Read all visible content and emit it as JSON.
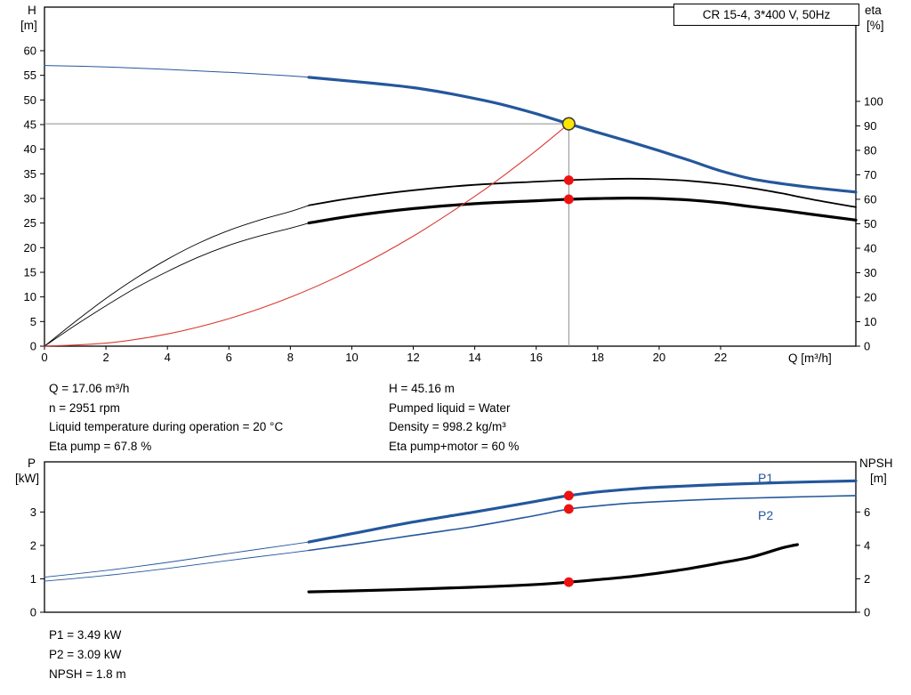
{
  "palette": {
    "curve_blue": "#24579c",
    "curve_red": "#d93a30",
    "black": "#000000",
    "dot_red": "#ee1111",
    "duty_yellow": "#ffe600",
    "duty_ring": "#3c3c3c",
    "crosshair": "#8c8c8c"
  },
  "info_top": {
    "left": [
      "Q = 17.06 m³/h",
      "n = 2951 rpm",
      "Liquid temperature during operation = 20 °C",
      "Eta pump = 67.8 %"
    ],
    "right": [
      "H = 45.16 m",
      "Pumped liquid = Water",
      "Density = 998.2 kg/m³",
      "Eta pump+motor = 60 %"
    ]
  },
  "info_bottom": [
    "P1 = 3.49 kW",
    "P2 = 3.09 kW",
    "NPSH = 1.8 m"
  ],
  "chart_data": [
    {
      "id": "hq_eta",
      "type": "line",
      "title": "CR 15-4, 3*400 V, 50Hz",
      "x_axis": {
        "label": "Q [m³/h]",
        "min": 0,
        "max": 26.4,
        "ticks": [
          0,
          2,
          4,
          6,
          8,
          10,
          12,
          14,
          16,
          18,
          20,
          22
        ]
      },
      "y_left": {
        "label_lines": [
          "H",
          "[m]"
        ],
        "min": 0,
        "max": 68.85,
        "ticks": [
          0,
          5,
          10,
          15,
          20,
          25,
          30,
          35,
          40,
          45,
          50,
          55,
          60
        ]
      },
      "y_right": {
        "label_lines": [
          "eta",
          "[%]"
        ],
        "min": 0,
        "max": 138.5,
        "ticks": [
          0,
          10,
          20,
          30,
          40,
          50,
          60,
          70,
          80,
          90,
          100
        ]
      },
      "crosshair": {
        "q": 17.06,
        "v": 45.16
      },
      "duty_point": {
        "q": 17.06,
        "v": 45.16
      },
      "markers": [
        {
          "axis": "right",
          "q": 17.06,
          "v": 67.8
        },
        {
          "axis": "right",
          "q": 17.06,
          "v": 60
        }
      ],
      "series": [
        {
          "name": "H-Q",
          "axis": "left",
          "color": "curve_blue",
          "segments": [
            {
              "width": 1,
              "points": [
                [
                  0,
                  57
                ],
                [
                  2,
                  56.7
                ],
                [
                  4,
                  56.2
                ],
                [
                  6,
                  55.6
                ],
                [
                  8,
                  54.9
                ],
                [
                  8.6,
                  54.6
                ]
              ]
            },
            {
              "width": 3.2,
              "points": [
                [
                  8.6,
                  54.6
                ],
                [
                  10,
                  53.8
                ],
                [
                  11,
                  53.2
                ],
                [
                  12,
                  52.5
                ],
                [
                  13,
                  51.5
                ],
                [
                  14,
                  50.3
                ],
                [
                  15,
                  48.9
                ],
                [
                  16,
                  47.2
                ],
                [
                  17.06,
                  45.16
                ],
                [
                  18,
                  43.4
                ],
                [
                  19,
                  41.6
                ],
                [
                  20,
                  39.7
                ],
                [
                  21,
                  37.7
                ],
                [
                  22,
                  35.6
                ],
                [
                  23,
                  34
                ],
                [
                  24,
                  33
                ],
                [
                  25,
                  32.2
                ],
                [
                  26.4,
                  31.3
                ]
              ]
            }
          ]
        },
        {
          "name": "eta-pump",
          "axis": "right",
          "color": "black",
          "segments": [
            {
              "width": 0.9,
              "points": [
                [
                  0,
                  0
                ],
                [
                  1,
                  10
                ],
                [
                  2,
                  19.5
                ],
                [
                  3,
                  28
                ],
                [
                  4,
                  35.5
                ],
                [
                  5,
                  42
                ],
                [
                  6,
                  47.3
                ],
                [
                  7,
                  51.5
                ],
                [
                  8,
                  55
                ],
                [
                  8.6,
                  57.5
                ]
              ]
            },
            {
              "width": 1.8,
              "points": [
                [
                  8.6,
                  57.5
                ],
                [
                  10,
                  60.5
                ],
                [
                  12,
                  63.7
                ],
                [
                  14,
                  65.9
                ],
                [
                  16,
                  67.2
                ],
                [
                  17.06,
                  67.8
                ],
                [
                  18,
                  68.2
                ],
                [
                  19,
                  68.4
                ],
                [
                  20,
                  68.2
                ],
                [
                  21,
                  67.5
                ],
                [
                  22,
                  66.3
                ],
                [
                  23,
                  64.6
                ],
                [
                  24,
                  62.4
                ],
                [
                  25,
                  59.9
                ],
                [
                  26.4,
                  56.8
                ]
              ]
            }
          ]
        },
        {
          "name": "eta-pump-motor",
          "axis": "right",
          "color": "black",
          "segments": [
            {
              "width": 0.9,
              "points": [
                [
                  0,
                  0
                ],
                [
                  1,
                  8.5
                ],
                [
                  2,
                  16.5
                ],
                [
                  3,
                  24
                ],
                [
                  4,
                  30.5
                ],
                [
                  5,
                  36.3
                ],
                [
                  6,
                  41.2
                ],
                [
                  7,
                  45
                ],
                [
                  8,
                  48.2
                ],
                [
                  8.6,
                  50.3
                ]
              ]
            },
            {
              "width": 3.2,
              "points": [
                [
                  8.6,
                  50.3
                ],
                [
                  10,
                  53.2
                ],
                [
                  12,
                  56.2
                ],
                [
                  14,
                  58.2
                ],
                [
                  16,
                  59.4
                ],
                [
                  17.06,
                  60
                ],
                [
                  18,
                  60.3
                ],
                [
                  19,
                  60.5
                ],
                [
                  20,
                  60.3
                ],
                [
                  21,
                  59.7
                ],
                [
                  22,
                  58.6
                ],
                [
                  23,
                  57
                ],
                [
                  24,
                  55.5
                ],
                [
                  25,
                  53.8
                ],
                [
                  26.4,
                  51.5
                ]
              ]
            }
          ]
        },
        {
          "name": "affinity-parabola",
          "axis": "left",
          "color": "curve_red",
          "segments": [
            {
              "width": 1.1,
              "points": [
                [
                  0,
                  0
                ],
                [
                  2,
                  0.62
                ],
                [
                  4,
                  2.48
                ],
                [
                  6,
                  5.59
                ],
                [
                  8,
                  9.93
                ],
                [
                  10,
                  15.52
                ],
                [
                  12,
                  22.34
                ],
                [
                  14,
                  30.41
                ],
                [
                  15,
                  34.91
                ],
                [
                  16,
                  39.72
                ],
                [
                  17.06,
                  45.16
                ]
              ]
            }
          ]
        }
      ]
    },
    {
      "id": "p_npsh",
      "type": "line",
      "x_axis": {
        "min": 0,
        "max": 26.4
      },
      "y_left": {
        "label_lines": [
          "P",
          "[kW]"
        ],
        "min": 0,
        "max": 4.5,
        "ticks": [
          0,
          1,
          2,
          3
        ]
      },
      "y_right": {
        "label_lines": [
          "NPSH",
          "[m]"
        ],
        "min": 0,
        "max": 9,
        "ticks": [
          0,
          2,
          4,
          6
        ]
      },
      "markers": [
        {
          "axis": "left",
          "q": 17.06,
          "v": 3.49
        },
        {
          "axis": "left",
          "q": 17.06,
          "v": 3.09
        },
        {
          "axis": "right",
          "q": 17.06,
          "v": 1.8
        }
      ],
      "series": [
        {
          "name": "P1",
          "axis": "left",
          "color": "curve_blue",
          "segments": [
            {
              "width": 0.9,
              "points": [
                [
                  0,
                  1.05
                ],
                [
                  2,
                  1.25
                ],
                [
                  4,
                  1.49
                ],
                [
                  6,
                  1.76
                ],
                [
                  8,
                  2.02
                ],
                [
                  8.6,
                  2.1
                ]
              ]
            },
            {
              "width": 3.2,
              "points": [
                [
                  8.6,
                  2.1
                ],
                [
                  10,
                  2.35
                ],
                [
                  12,
                  2.7
                ],
                [
                  14,
                  3.0
                ],
                [
                  16,
                  3.32
                ],
                [
                  17.06,
                  3.49
                ],
                [
                  18,
                  3.6
                ],
                [
                  19,
                  3.68
                ],
                [
                  20,
                  3.74
                ],
                [
                  22,
                  3.82
                ],
                [
                  24,
                  3.88
                ],
                [
                  26.4,
                  3.93
                ]
              ]
            }
          ]
        },
        {
          "name": "P2",
          "axis": "left",
          "color": "curve_blue",
          "segments": [
            {
              "width": 0.9,
              "points": [
                [
                  0,
                  0.93
                ],
                [
                  2,
                  1.1
                ],
                [
                  4,
                  1.31
                ],
                [
                  6,
                  1.55
                ],
                [
                  8,
                  1.78
                ],
                [
                  8.6,
                  1.85
                ]
              ]
            },
            {
              "width": 1.6,
              "points": [
                [
                  8.6,
                  1.85
                ],
                [
                  10,
                  2.03
                ],
                [
                  12,
                  2.3
                ],
                [
                  14,
                  2.57
                ],
                [
                  16,
                  2.9
                ],
                [
                  17.06,
                  3.09
                ],
                [
                  18,
                  3.18
                ],
                [
                  19,
                  3.26
                ],
                [
                  20,
                  3.31
                ],
                [
                  22,
                  3.39
                ],
                [
                  24,
                  3.44
                ],
                [
                  26.4,
                  3.49
                ]
              ]
            }
          ]
        },
        {
          "name": "NPSH",
          "axis": "right",
          "color": "black",
          "segments": [
            {
              "width": 3.2,
              "points": [
                [
                  8.6,
                  1.22
                ],
                [
                  10,
                  1.28
                ],
                [
                  12,
                  1.38
                ],
                [
                  14,
                  1.5
                ],
                [
                  16,
                  1.66
                ],
                [
                  17.06,
                  1.8
                ],
                [
                  18,
                  1.95
                ],
                [
                  19,
                  2.12
                ],
                [
                  20,
                  2.35
                ],
                [
                  21,
                  2.62
                ],
                [
                  22,
                  2.95
                ],
                [
                  23,
                  3.3
                ],
                [
                  24,
                  3.85
                ],
                [
                  24.5,
                  4.05
                ]
              ]
            }
          ]
        }
      ]
    }
  ]
}
